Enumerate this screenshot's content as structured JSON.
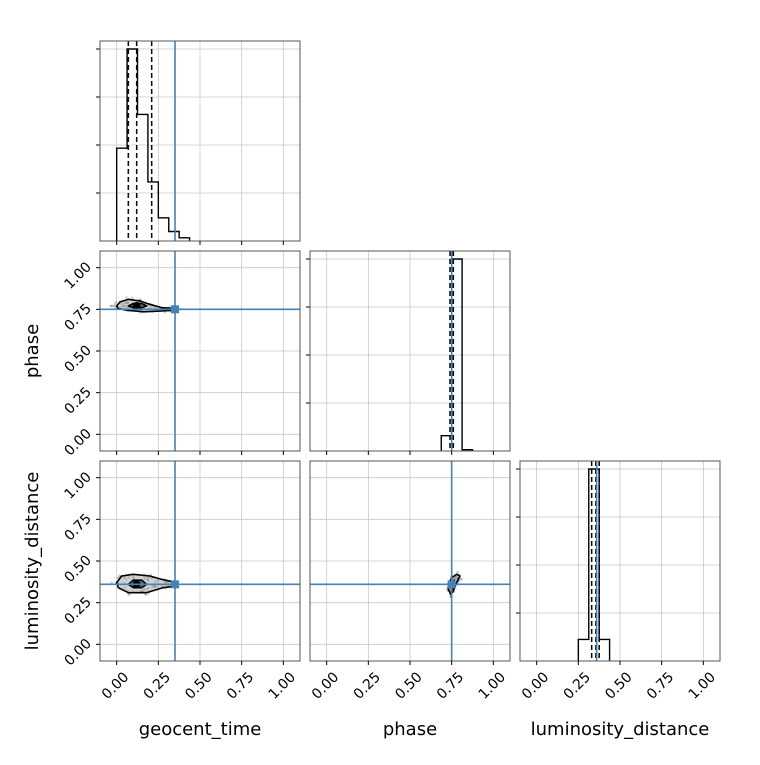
{
  "chart_data": {
    "type": "corner",
    "parameters": [
      "geocent_time",
      "phase",
      "luminosity_distance"
    ],
    "axis_range": [
      -0.1,
      1.1
    ],
    "ticks": [
      0.0,
      0.25,
      0.5,
      0.75,
      1.0
    ],
    "tick_labels": [
      "0.00",
      "0.25",
      "0.50",
      "0.75",
      "1.00"
    ],
    "grid": true,
    "truth_color": "#4682b4",
    "truths": {
      "geocent_time": 0.35,
      "phase": 0.75,
      "luminosity_distance": 0.36
    },
    "histograms": {
      "geocent_time": {
        "bin_edges": [
          0.0,
          0.0625,
          0.125,
          0.1875,
          0.25,
          0.3125,
          0.375,
          0.4375
        ],
        "counts": [
          0.44,
          0.91,
          0.6,
          0.28,
          0.11,
          0.045,
          0.015
        ],
        "quantile_lines": [
          0.07,
          0.12,
          0.21
        ]
      },
      "phase": {
        "bin_edges": [
          0.6875,
          0.75,
          0.8125,
          0.875
        ],
        "counts": [
          0.07,
          0.88,
          0.006
        ],
        "quantile_lines": [
          0.74,
          0.75,
          0.76
        ]
      },
      "luminosity_distance": {
        "bin_edges": [
          0.25,
          0.3125,
          0.375,
          0.4375
        ],
        "counts": [
          0.09,
          0.8,
          0.09
        ],
        "quantile_lines": [
          0.33,
          0.355,
          0.375
        ]
      }
    },
    "densities": [
      {
        "x": "geocent_time",
        "y": "phase",
        "center": [
          0.12,
          0.77
        ],
        "contour_outer": [
          [
            0.0,
            0.77
          ],
          [
            0.02,
            0.795
          ],
          [
            0.07,
            0.81
          ],
          [
            0.14,
            0.8
          ],
          [
            0.2,
            0.78
          ],
          [
            0.27,
            0.76
          ],
          [
            0.36,
            0.755
          ],
          [
            0.36,
            0.745
          ],
          [
            0.27,
            0.74
          ],
          [
            0.16,
            0.735
          ],
          [
            0.06,
            0.745
          ],
          [
            0.01,
            0.755
          ]
        ],
        "contour_inner": [
          [
            0.07,
            0.77
          ],
          [
            0.1,
            0.785
          ],
          [
            0.15,
            0.785
          ],
          [
            0.18,
            0.77
          ],
          [
            0.15,
            0.76
          ],
          [
            0.1,
            0.76
          ]
        ]
      },
      {
        "x": "geocent_time",
        "y": "luminosity_distance",
        "center": [
          0.12,
          0.36
        ],
        "contour_outer": [
          [
            0.0,
            0.37
          ],
          [
            0.03,
            0.41
          ],
          [
            0.1,
            0.42
          ],
          [
            0.2,
            0.41
          ],
          [
            0.27,
            0.39
          ],
          [
            0.36,
            0.37
          ],
          [
            0.36,
            0.35
          ],
          [
            0.28,
            0.34
          ],
          [
            0.18,
            0.31
          ],
          [
            0.07,
            0.31
          ],
          [
            0.01,
            0.34
          ]
        ],
        "contour_inner": [
          [
            0.07,
            0.36
          ],
          [
            0.1,
            0.385
          ],
          [
            0.15,
            0.385
          ],
          [
            0.18,
            0.36
          ],
          [
            0.15,
            0.34
          ],
          [
            0.1,
            0.34
          ]
        ]
      },
      {
        "x": "phase",
        "y": "luminosity_distance",
        "center": [
          0.75,
          0.36
        ],
        "contour_outer": [
          [
            0.73,
            0.33
          ],
          [
            0.735,
            0.37
          ],
          [
            0.75,
            0.4
          ],
          [
            0.78,
            0.42
          ],
          [
            0.8,
            0.41
          ],
          [
            0.78,
            0.37
          ],
          [
            0.76,
            0.32
          ],
          [
            0.745,
            0.3
          ]
        ],
        "contour_inner": [
          [
            0.745,
            0.34
          ],
          [
            0.75,
            0.37
          ],
          [
            0.765,
            0.385
          ],
          [
            0.77,
            0.36
          ],
          [
            0.76,
            0.33
          ]
        ]
      }
    ]
  }
}
